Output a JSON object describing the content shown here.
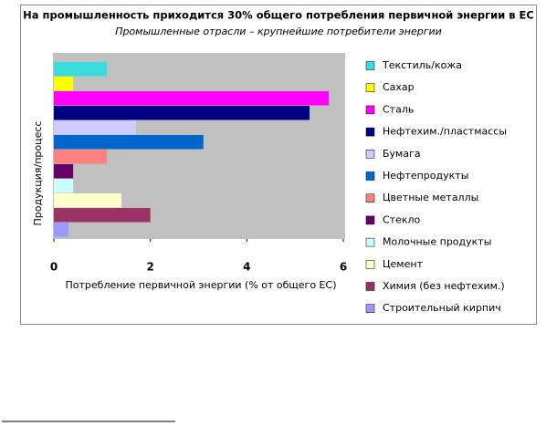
{
  "chart_data": {
    "type": "hbar",
    "title": "На промышленность приходится 30% общего потребления первичной энергии в ЕС",
    "subtitle": "Промышленные отрасли – крупнейшие потребители энергии",
    "x_label": "Потребление первичной энергии (% от общего ЕС)",
    "y_label": "Продукция/процесс",
    "categories": [
      "Текстиль/кожа",
      "Сахар",
      "Сталь",
      "Нефтехим./пластмассы",
      "Бумага",
      "Нефтепродукты",
      "Цветные металлы",
      "Стекло",
      "Молочные продукты",
      "Цемент",
      "Химия (без нефтехим.)",
      "Строительный кирпич"
    ],
    "values": [
      1.1,
      0.4,
      5.7,
      5.3,
      1.7,
      3.1,
      1.1,
      0.4,
      0.4,
      1.4,
      2.0,
      0.3
    ],
    "colors": [
      "#3cdcdc",
      "#ffff00",
      "#ff00ff",
      "#000080",
      "#ccccff",
      "#0066cc",
      "#ff8080",
      "#660066",
      "#ccffff",
      "#ffffcc",
      "#993366",
      "#9999ff"
    ],
    "xlim": [
      0,
      6
    ],
    "xticks": [
      0,
      2,
      4,
      6
    ],
    "grid": false
  }
}
